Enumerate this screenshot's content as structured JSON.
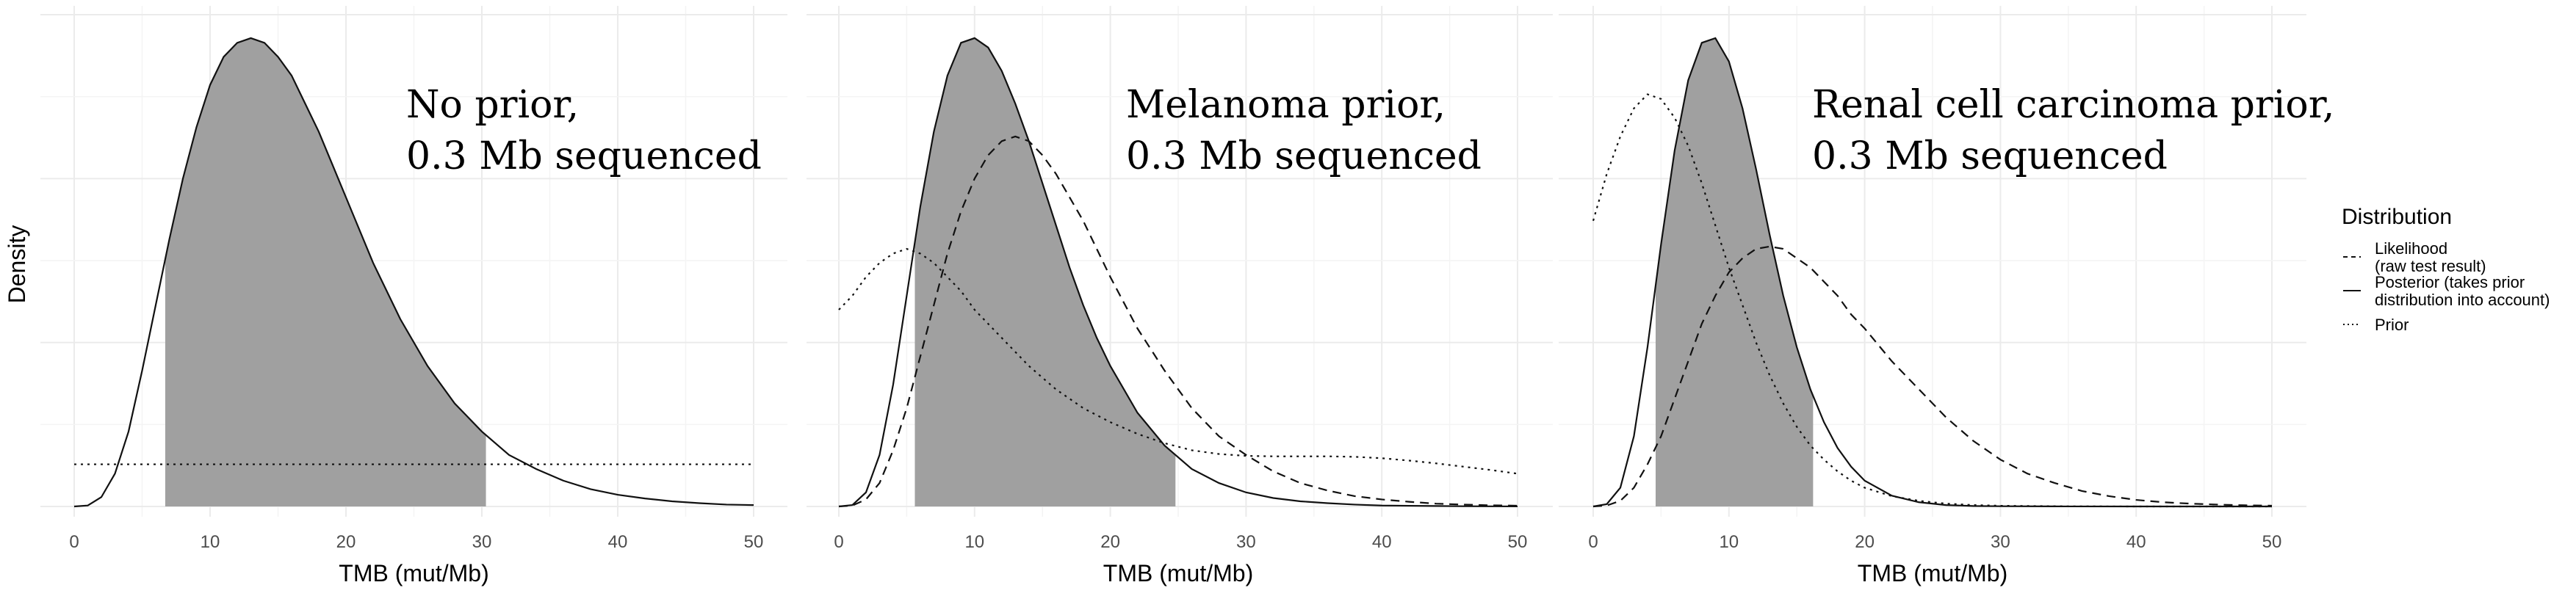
{
  "chart_data": {
    "type": "area",
    "y_axis_label": "Density",
    "x_axis_label": "TMB (mut/Mb)",
    "xlim": [
      0,
      50
    ],
    "x_ticks": [
      "0",
      "10",
      "20",
      "30",
      "40",
      "50"
    ],
    "legend": {
      "title": "Distribution",
      "placement": "right",
      "entries": [
        {
          "key": "likelihood",
          "linetype": "dashed",
          "lines": [
            "Likelihood",
            "(raw test result)"
          ]
        },
        {
          "key": "posterior",
          "linetype": "solid",
          "lines": [
            "Posterior (takes prior",
            "distribution into account)"
          ]
        },
        {
          "key": "prior",
          "linetype": "dotted",
          "lines": [
            "Prior"
          ]
        }
      ]
    },
    "panels": [
      {
        "label_lines": [
          "No prior,",
          "0.3 Mb sequenced"
        ],
        "ymax": 1.05,
        "shade_interval": [
          6.7,
          30.3
        ],
        "series": {
          "posterior": {
            "x": [
              0,
              1,
              2,
              3,
              4,
              5,
              6,
              7,
              8,
              9,
              10,
              11,
              12,
              13,
              14,
              15,
              16,
              17,
              18,
              19,
              20,
              22,
              24,
              26,
              28,
              30,
              32,
              34,
              36,
              38,
              40,
              42,
              44,
              46,
              48,
              50
            ],
            "y": [
              0.0,
              0.002,
              0.02,
              0.07,
              0.16,
              0.29,
              0.43,
              0.57,
              0.7,
              0.81,
              0.9,
              0.96,
              0.99,
              1.0,
              0.99,
              0.96,
              0.92,
              0.86,
              0.8,
              0.73,
              0.66,
              0.52,
              0.4,
              0.3,
              0.22,
              0.16,
              0.11,
              0.08,
              0.055,
              0.037,
              0.025,
              0.017,
              0.011,
              0.007,
              0.004,
              0.003
            ]
          },
          "prior": {
            "x": [
              0,
              50
            ],
            "y": [
              0.09,
              0.09
            ]
          }
        }
      },
      {
        "label_lines": [
          "Melanoma prior,",
          "0.3 Mb sequenced"
        ],
        "ymax": 1.05,
        "shade_interval": [
          5.6,
          24.8
        ],
        "series": {
          "posterior": {
            "x": [
              0,
              1,
              2,
              3,
              4,
              5,
              6,
              7,
              8,
              9,
              10,
              11,
              12,
              13,
              14,
              15,
              16,
              17,
              18,
              19,
              20,
              22,
              24,
              26,
              28,
              30,
              32,
              34,
              36,
              38,
              40,
              42,
              44,
              46,
              48,
              50
            ],
            "y": [
              0.0,
              0.003,
              0.03,
              0.11,
              0.26,
              0.45,
              0.64,
              0.8,
              0.92,
              0.99,
              1.0,
              0.98,
              0.93,
              0.86,
              0.78,
              0.69,
              0.6,
              0.51,
              0.43,
              0.36,
              0.3,
              0.2,
              0.13,
              0.08,
              0.05,
              0.03,
              0.018,
              0.011,
              0.007,
              0.004,
              0.002,
              0.0015,
              0.001,
              0.0005,
              0.0003,
              0.0001
            ]
          },
          "likelihood": {
            "x": [
              0,
              1,
              2,
              3,
              4,
              5,
              6,
              7,
              8,
              9,
              10,
              11,
              12,
              13,
              14,
              15,
              16,
              17,
              18,
              19,
              20,
              22,
              24,
              26,
              28,
              30,
              32,
              34,
              36,
              38,
              40,
              42,
              44,
              46,
              48,
              50
            ],
            "y": [
              0.0,
              0.002,
              0.015,
              0.05,
              0.12,
              0.21,
              0.32,
              0.43,
              0.54,
              0.63,
              0.7,
              0.75,
              0.78,
              0.79,
              0.78,
              0.75,
              0.71,
              0.66,
              0.61,
              0.55,
              0.49,
              0.38,
              0.29,
              0.21,
              0.15,
              0.11,
              0.075,
              0.05,
              0.034,
              0.022,
              0.015,
              0.01,
              0.006,
              0.004,
              0.0025,
              0.0016
            ]
          },
          "prior": {
            "x": [
              0,
              1,
              2,
              3,
              4,
              5,
              6,
              7,
              8,
              9,
              10,
              12,
              14,
              16,
              18,
              20,
              22,
              24,
              26,
              28,
              30,
              32,
              34,
              36,
              38,
              40,
              42,
              44,
              46,
              48,
              50
            ],
            "y": [
              0.42,
              0.45,
              0.49,
              0.52,
              0.54,
              0.55,
              0.54,
              0.52,
              0.49,
              0.46,
              0.42,
              0.36,
              0.3,
              0.25,
              0.21,
              0.18,
              0.155,
              0.135,
              0.12,
              0.112,
              0.108,
              0.107,
              0.107,
              0.107,
              0.106,
              0.103,
              0.098,
              0.092,
              0.085,
              0.078,
              0.07
            ]
          }
        }
      },
      {
        "label_lines": [
          "Renal cell carcinoma prior,",
          "0.3 Mb sequenced"
        ],
        "ymax": 1.05,
        "shade_interval": [
          4.6,
          16.2
        ],
        "series": {
          "posterior": {
            "x": [
              0,
              1,
              2,
              3,
              4,
              5,
              6,
              7,
              8,
              9,
              10,
              11,
              12,
              13,
              14,
              15,
              16,
              17,
              18,
              19,
              20,
              22,
              24,
              26,
              28,
              30,
              35,
              40,
              45,
              50
            ],
            "y": [
              0.0,
              0.005,
              0.04,
              0.15,
              0.34,
              0.56,
              0.76,
              0.91,
              0.99,
              1.0,
              0.95,
              0.85,
              0.72,
              0.58,
              0.45,
              0.34,
              0.25,
              0.18,
              0.125,
              0.085,
              0.055,
              0.023,
              0.009,
              0.003,
              0.001,
              0.0005,
              0.0001,
              0.0,
              0.0,
              0.0
            ]
          },
          "likelihood": {
            "x": [
              0,
              1,
              2,
              3,
              4,
              5,
              6,
              7,
              8,
              9,
              10,
              11,
              12,
              13,
              14,
              15,
              16,
              17,
              18,
              19,
              20,
              22,
              24,
              26,
              28,
              30,
              32,
              34,
              36,
              38,
              40,
              42,
              44,
              46,
              48,
              50
            ],
            "y": [
              0.0,
              0.002,
              0.012,
              0.04,
              0.09,
              0.15,
              0.23,
              0.31,
              0.39,
              0.45,
              0.5,
              0.53,
              0.55,
              0.555,
              0.55,
              0.53,
              0.51,
              0.48,
              0.45,
              0.41,
              0.38,
              0.31,
              0.25,
              0.19,
              0.14,
              0.1,
              0.07,
              0.05,
              0.033,
              0.022,
              0.014,
              0.009,
              0.006,
              0.004,
              0.0025,
              0.0016
            ]
          },
          "prior": {
            "x": [
              0,
              1,
              2,
              3,
              4,
              5,
              6,
              7,
              8,
              9,
              10,
              11,
              12,
              13,
              14,
              15,
              16,
              17,
              18,
              19,
              20,
              22,
              24,
              26,
              28,
              30,
              35,
              40,
              45,
              50
            ],
            "y": [
              0.61,
              0.71,
              0.79,
              0.85,
              0.88,
              0.87,
              0.83,
              0.77,
              0.69,
              0.6,
              0.51,
              0.43,
              0.35,
              0.28,
              0.22,
              0.17,
              0.13,
              0.1,
              0.075,
              0.055,
              0.04,
              0.022,
              0.012,
              0.006,
              0.003,
              0.0015,
              0.0003,
              0.0,
              0.0,
              0.0
            ]
          }
        }
      }
    ]
  }
}
